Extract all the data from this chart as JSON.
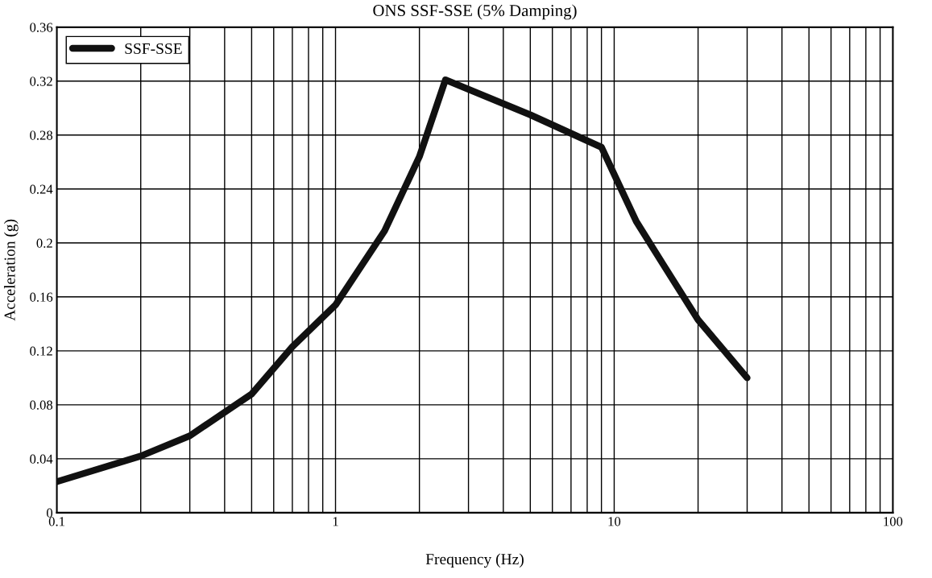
{
  "chart_data": {
    "type": "line",
    "title": "ONS SSF-SSE (5% Damping)",
    "xlabel": "Frequency (Hz)",
    "ylabel": "Acceleration (g)",
    "log": "x",
    "grid": true,
    "legend": "top left",
    "marker": "none",
    "line_style": "solid",
    "xlim": [
      0.1,
      100
    ],
    "xticks": [
      0.1,
      1,
      10,
      100
    ],
    "ylim": [
      0,
      0.36
    ],
    "yticks": [
      0,
      0.04,
      0.08,
      0.12,
      0.16,
      0.2,
      0.24,
      0.28,
      0.32,
      0.36
    ],
    "x": [
      0.1,
      0.2,
      0.3,
      0.5,
      0.7,
      1,
      1.5,
      2,
      2.48,
      5,
      9,
      12,
      15,
      20,
      30
    ],
    "series": [
      {
        "name": "SSF-SSE",
        "color": "#111111",
        "values": [
          0.023,
          0.042,
          0.057,
          0.088,
          0.123,
          0.154,
          0.209,
          0.264,
          0.321,
          0.295,
          0.271,
          0.216,
          0.184,
          0.143,
          0.1
        ]
      }
    ]
  }
}
